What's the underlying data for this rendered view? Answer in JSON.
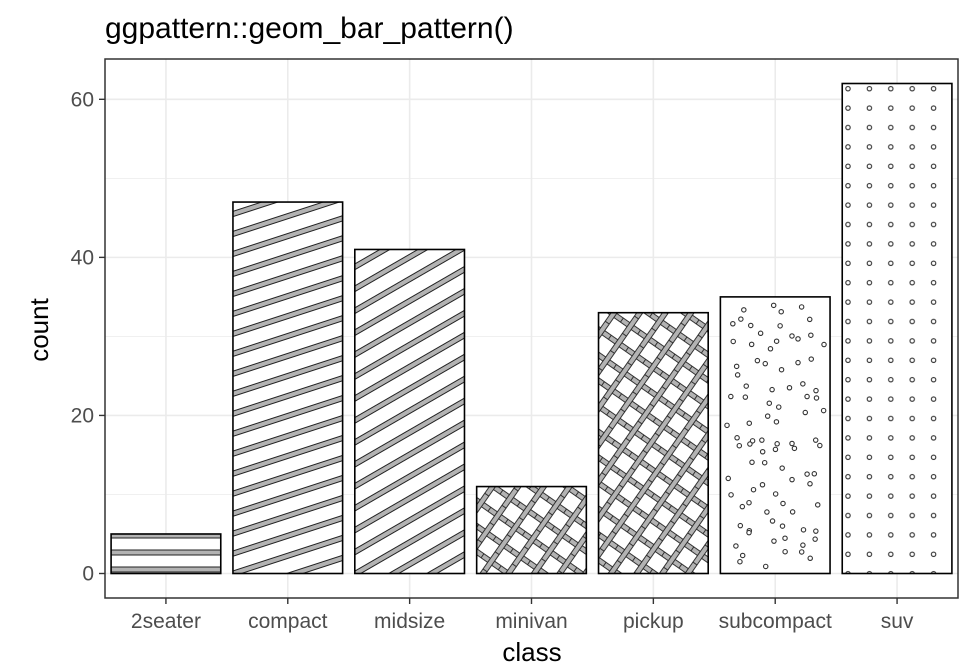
{
  "chart_data": {
    "type": "bar",
    "title": "ggpattern::geom_bar_pattern()",
    "xlabel": "class",
    "ylabel": "count",
    "categories": [
      "2seater",
      "compact",
      "midsize",
      "minivan",
      "pickup",
      "subcompact",
      "suv"
    ],
    "values": [
      5,
      47,
      41,
      11,
      33,
      35,
      62
    ],
    "patterns": [
      "stripe-horizontal",
      "stripe-diagonal-shallow",
      "stripe-diagonal-steep",
      "crosshatch",
      "crosshatch",
      "circles-random",
      "circles-grid"
    ],
    "ylim": [
      -3.1,
      65.1
    ],
    "yticks": [
      0,
      20,
      40,
      60
    ],
    "grid": true,
    "colors": {
      "bar_outline": "#000000",
      "stripe_fill": "#b3b3b3",
      "grid": "#ebebeb",
      "panel_border": "#333333",
      "tick_text": "#4d4d4d"
    }
  }
}
